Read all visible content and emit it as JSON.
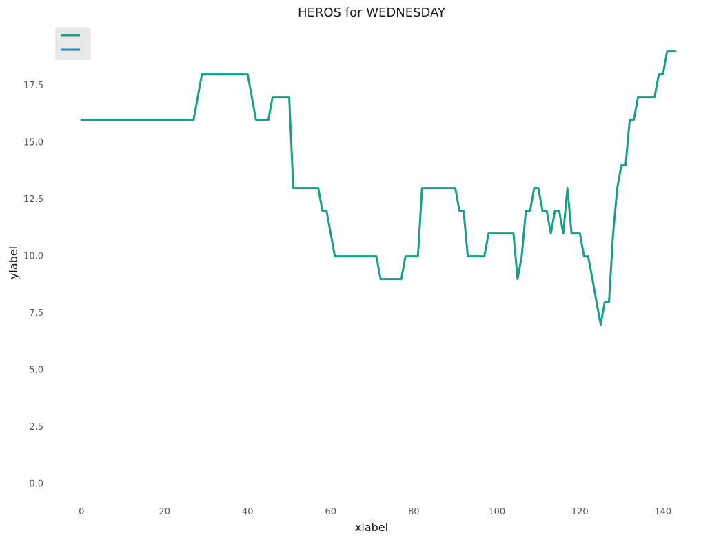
{
  "chart_data": {
    "type": "line",
    "title": "HEROS for WEDNESDAY",
    "xlabel": "xlabel",
    "ylabel": "ylabel",
    "xlim": [
      -8,
      148
    ],
    "ylim": [
      -0.8,
      20.2
    ],
    "xticks": [
      0,
      20,
      40,
      60,
      80,
      100,
      120,
      140
    ],
    "yticks": [
      0.0,
      2.5,
      5.0,
      7.5,
      10.0,
      12.5,
      15.0,
      17.5
    ],
    "ytick_labels": [
      "0.0",
      "2.5",
      "5.0",
      "7.5",
      "10.0",
      "12.5",
      "15.0",
      "17.5"
    ],
    "grid": false,
    "legend": {
      "placement": "top-left",
      "show_labels": false
    },
    "series": [
      {
        "color": "#16a085",
        "points": [
          [
            0,
            16
          ],
          [
            27,
            16
          ],
          [
            29,
            18
          ],
          [
            40,
            18
          ],
          [
            42,
            16
          ],
          [
            45,
            16
          ],
          [
            46,
            17
          ],
          [
            50,
            17
          ],
          [
            51,
            13
          ],
          [
            57,
            13
          ],
          [
            58,
            12
          ],
          [
            59,
            12
          ],
          [
            61,
            10
          ],
          [
            71,
            10
          ],
          [
            72,
            9
          ],
          [
            77,
            9
          ],
          [
            78,
            10
          ],
          [
            81,
            10
          ],
          [
            82,
            13
          ],
          [
            90,
            13
          ],
          [
            91,
            12
          ],
          [
            92,
            12
          ],
          [
            93,
            10
          ],
          [
            97,
            10
          ],
          [
            98,
            11
          ],
          [
            104,
            11
          ],
          [
            105,
            9
          ],
          [
            106,
            10
          ],
          [
            107,
            12
          ],
          [
            108,
            12
          ],
          [
            109,
            13
          ],
          [
            110,
            13
          ],
          [
            111,
            12
          ],
          [
            112,
            12
          ],
          [
            113,
            11
          ],
          [
            114,
            12
          ],
          [
            115,
            12
          ],
          [
            116,
            11
          ],
          [
            117,
            13
          ],
          [
            118,
            11
          ],
          [
            120,
            11
          ],
          [
            121,
            10
          ],
          [
            122,
            10
          ],
          [
            123,
            9
          ],
          [
            124,
            8
          ],
          [
            125,
            7
          ],
          [
            126,
            8
          ],
          [
            127,
            8
          ],
          [
            128,
            11
          ],
          [
            129,
            13
          ],
          [
            130,
            14
          ],
          [
            131,
            14
          ],
          [
            132,
            16
          ],
          [
            133,
            16
          ],
          [
            134,
            17
          ],
          [
            138,
            17
          ],
          [
            139,
            18
          ],
          [
            140,
            18
          ],
          [
            141,
            19
          ],
          [
            143,
            19
          ]
        ]
      },
      {
        "color": "#2980b9",
        "points": []
      }
    ]
  }
}
